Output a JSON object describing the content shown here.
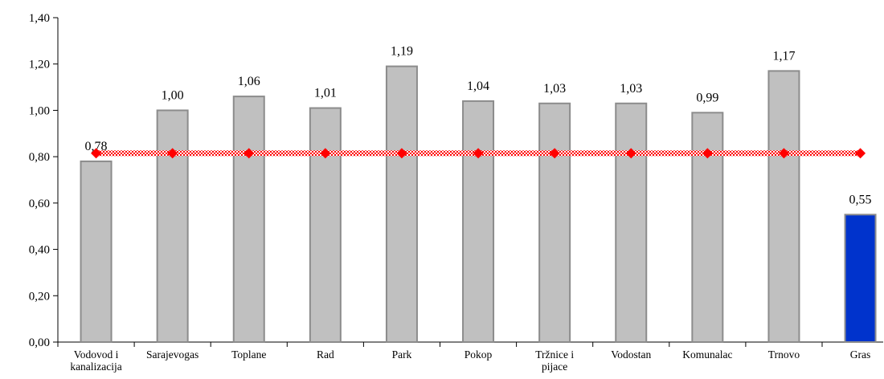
{
  "chart_data": {
    "type": "bar",
    "categories": [
      [
        "Vodovod i",
        "kanalizacija"
      ],
      [
        "Sarajevogas"
      ],
      [
        "Toplane"
      ],
      [
        "Rad"
      ],
      [
        "Park"
      ],
      [
        "Pokop"
      ],
      [
        "Tržnice i",
        "pijace"
      ],
      [
        "Vodostan"
      ],
      [
        "Komunalac"
      ],
      [
        "Trnovo"
      ],
      [
        "Gras"
      ]
    ],
    "values": [
      0.78,
      1.0,
      1.06,
      1.01,
      1.19,
      1.04,
      1.03,
      1.03,
      0.99,
      1.17,
      0.55
    ],
    "value_labels": [
      "0,78",
      "1,00",
      "1,06",
      "1,01",
      "1,19",
      "1,04",
      "1,03",
      "1,03",
      "0,99",
      "1,17",
      "0,55"
    ],
    "highlight_index": 10,
    "reference_line": {
      "value": 0.815,
      "color": "#ff0000"
    },
    "ylim": [
      0,
      1.4
    ],
    "yticks": [
      0,
      0.2,
      0.4,
      0.6,
      0.8,
      1.0,
      1.2,
      1.4
    ],
    "ytick_labels": [
      "0,00",
      "0,20",
      "0,40",
      "0,60",
      "0,80",
      "1,00",
      "1,20",
      "1,40"
    ],
    "title": "",
    "xlabel": "",
    "ylabel": "",
    "grid": false,
    "colors": {
      "bar": "#c0c0c0",
      "bar_edge": "#8c8c8c",
      "highlight_bar": "#0033cc",
      "highlight_edge": "#8c8c8c",
      "reference": "#ff0000"
    }
  }
}
